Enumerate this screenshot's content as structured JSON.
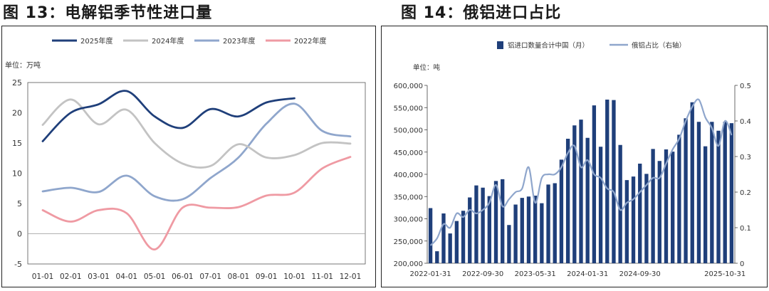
{
  "figure1": {
    "title": "图 13：电解铝季节性进口量",
    "chart_data": {
      "type": "line",
      "ylabel": "单位：万吨",
      "ylim": [
        -5,
        25
      ],
      "yticks": [
        -5,
        0,
        5,
        10,
        15,
        20,
        25
      ],
      "categories": [
        "01-01",
        "02-01",
        "03-01",
        "04-01",
        "05-01",
        "06-01",
        "07-01",
        "08-01",
        "09-01",
        "10-01",
        "11-01",
        "12-01"
      ],
      "legend_position": "top",
      "series": [
        {
          "name": "2025年度",
          "color": "#1f3f7a",
          "x": [
            0,
            1,
            2,
            3,
            4,
            5,
            6,
            7,
            8,
            9
          ],
          "y": [
            15.3,
            20.0,
            21.4,
            23.6,
            19.4,
            17.5,
            20.6,
            19.4,
            21.7,
            22.4
          ]
        },
        {
          "name": "2024年度",
          "color": "#c3c3c3",
          "x": [
            0,
            1,
            2,
            3,
            4,
            5,
            6,
            7,
            8,
            9,
            10,
            11
          ],
          "y": [
            18.0,
            22.2,
            18.1,
            20.5,
            15.0,
            11.6,
            11.2,
            14.8,
            12.6,
            13.0,
            15.0,
            14.9
          ]
        },
        {
          "name": "2023年度",
          "color": "#8fa6cc",
          "x": [
            0,
            1,
            2,
            3,
            4,
            5,
            6,
            7,
            8,
            9,
            10,
            11
          ],
          "y": [
            7.0,
            7.6,
            6.9,
            9.6,
            6.2,
            5.7,
            9.2,
            12.6,
            18.2,
            21.5,
            17.0,
            16.1
          ]
        },
        {
          "name": "2022年度",
          "color": "#ef9aa3",
          "x": [
            0,
            1,
            2,
            3,
            4,
            5,
            6,
            7,
            8,
            9,
            10,
            11
          ],
          "y": [
            3.9,
            2.0,
            3.9,
            3.4,
            -2.6,
            4.3,
            4.3,
            4.4,
            6.3,
            6.8,
            10.8,
            12.7
          ]
        }
      ]
    }
  },
  "figure2": {
    "title": "图 14：俄铝进口占比",
    "chart_data": {
      "type": "bar",
      "ylabel": "单位：吨",
      "ylim": [
        200000,
        600000
      ],
      "yticks": [
        200000,
        250000,
        300000,
        350000,
        400000,
        450000,
        500000,
        550000,
        600000
      ],
      "ytick_labels": [
        "200,000",
        "250,000",
        "300,000",
        "350,000",
        "400,000",
        "450,000",
        "500,000",
        "550,000",
        "600,000"
      ],
      "y2lim": [
        0,
        0.5
      ],
      "y2ticks": [
        0,
        0.1,
        0.2,
        0.3,
        0.4,
        0.5
      ],
      "y2tick_labels": [
        "0",
        "0.1",
        "0.2",
        "0.3",
        "0.4",
        "0.5"
      ],
      "xtick_labels": [
        "2022-01-31",
        "2022-09-30",
        "2023-05-31",
        "2024-01-31",
        "2024-09-30",
        "2025-10-31"
      ],
      "xtick_index": [
        0,
        8,
        16,
        24,
        32,
        45
      ],
      "legend_position": "top",
      "series": [
        {
          "name": "铝进口数量合计中国（月）",
          "type": "bar",
          "axis": "left",
          "color": "#1f3f7a",
          "values": [
            324000,
            227000,
            312000,
            267000,
            295000,
            318000,
            348000,
            375000,
            370000,
            351000,
            385000,
            389000,
            286000,
            332000,
            347000,
            350000,
            352000,
            335000,
            377000,
            380000,
            433000,
            480000,
            510000,
            523000,
            482000,
            555000,
            462000,
            568000,
            567000,
            466000,
            387000,
            395000,
            424000,
            401000,
            457000,
            430000,
            456000,
            451000,
            489000,
            526000,
            562000,
            518000,
            463000,
            518000,
            498000,
            518000,
            515000
          ]
        },
        {
          "name": "俄铝占比（右轴）",
          "type": "line",
          "axis": "right",
          "color": "#8fa6cc",
          "values": [
            0.05,
            0.07,
            0.11,
            0.1,
            0.14,
            0.13,
            0.15,
            0.14,
            0.15,
            0.17,
            0.22,
            0.16,
            0.18,
            0.2,
            0.21,
            0.27,
            0.17,
            0.24,
            0.25,
            0.25,
            0.27,
            0.31,
            0.33,
            0.27,
            0.29,
            0.25,
            0.24,
            0.21,
            0.2,
            0.15,
            0.17,
            0.18,
            0.2,
            0.22,
            0.24,
            0.24,
            0.28,
            0.32,
            0.35,
            0.4,
            0.44,
            0.46,
            0.41,
            0.38,
            0.33,
            0.4,
            0.36
          ]
        }
      ]
    }
  }
}
